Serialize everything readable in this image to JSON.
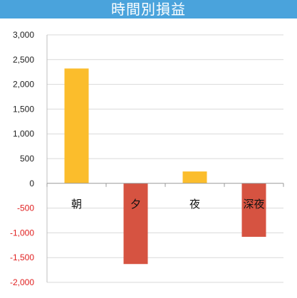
{
  "chart_data": {
    "type": "bar",
    "title": "時間別損益",
    "categories": [
      "朝",
      "夕",
      "夜",
      "深夜"
    ],
    "values": [
      2320,
      -1630,
      240,
      -1080
    ],
    "ylim": [
      -2000,
      3000
    ],
    "yticks": [
      3000,
      2500,
      2000,
      1500,
      1000,
      500,
      0,
      -500,
      -1000,
      -1500,
      -2000
    ],
    "ytick_labels": [
      "3,000",
      "2,500",
      "2,000",
      "1,500",
      "1,000",
      "500",
      "0",
      "-500",
      "-1,000",
      "-1,500",
      "-2,000"
    ],
    "grid": true,
    "colors": {
      "positive": "#fbbd2c",
      "negative": "#d65341",
      "negative_tick_label": "#e02020",
      "positive_tick_label": "#222222",
      "header_bg": "#4aa3dc",
      "grid": "#d9d9d9"
    }
  }
}
